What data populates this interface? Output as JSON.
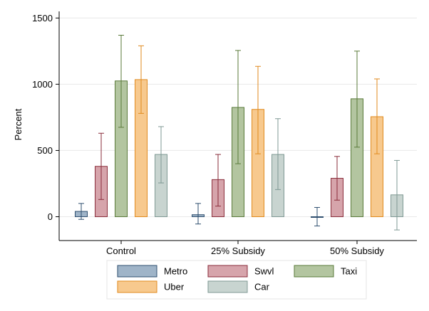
{
  "chart_data": {
    "type": "bar",
    "title": "",
    "xlabel": "",
    "ylabel": "Percent",
    "ylim": [
      -180,
      1550
    ],
    "yticks": [
      0,
      500,
      1000,
      1500
    ],
    "ytick_labels": [
      "0",
      "500",
      "1000",
      "1500"
    ],
    "grid": true,
    "legend_position": "bottom",
    "error_bars": true,
    "categories": [
      "Control",
      "25% Subsidy",
      "50% Subsidy"
    ],
    "series": [
      {
        "name": "Metro",
        "color": "#9fb4c8",
        "edge": "#2f4f6f",
        "values": [
          40,
          15,
          0
        ],
        "error_low": [
          -20,
          -55,
          -70
        ],
        "error_high": [
          100,
          100,
          70
        ]
      },
      {
        "name": "Swvl",
        "color": "#d6a4ab",
        "edge": "#8a2d3b",
        "values": [
          380,
          280,
          290
        ],
        "error_low": [
          130,
          80,
          125
        ],
        "error_high": [
          630,
          470,
          455
        ]
      },
      {
        "name": "Taxi",
        "color": "#b3c5a0",
        "edge": "#5a7a3a",
        "values": [
          1025,
          825,
          890
        ],
        "error_low": [
          675,
          400,
          525
        ],
        "error_high": [
          1370,
          1255,
          1250
        ]
      },
      {
        "name": "Uber",
        "color": "#f7c98e",
        "edge": "#e08a1e",
        "values": [
          1035,
          810,
          755
        ],
        "error_low": [
          780,
          475,
          475
        ],
        "error_high": [
          1290,
          1135,
          1040
        ]
      },
      {
        "name": "Car",
        "color": "#c8d4d0",
        "edge": "#7f9994",
        "values": [
          470,
          470,
          165
        ],
        "error_low": [
          255,
          205,
          -100
        ],
        "error_high": [
          680,
          740,
          425
        ]
      }
    ]
  }
}
